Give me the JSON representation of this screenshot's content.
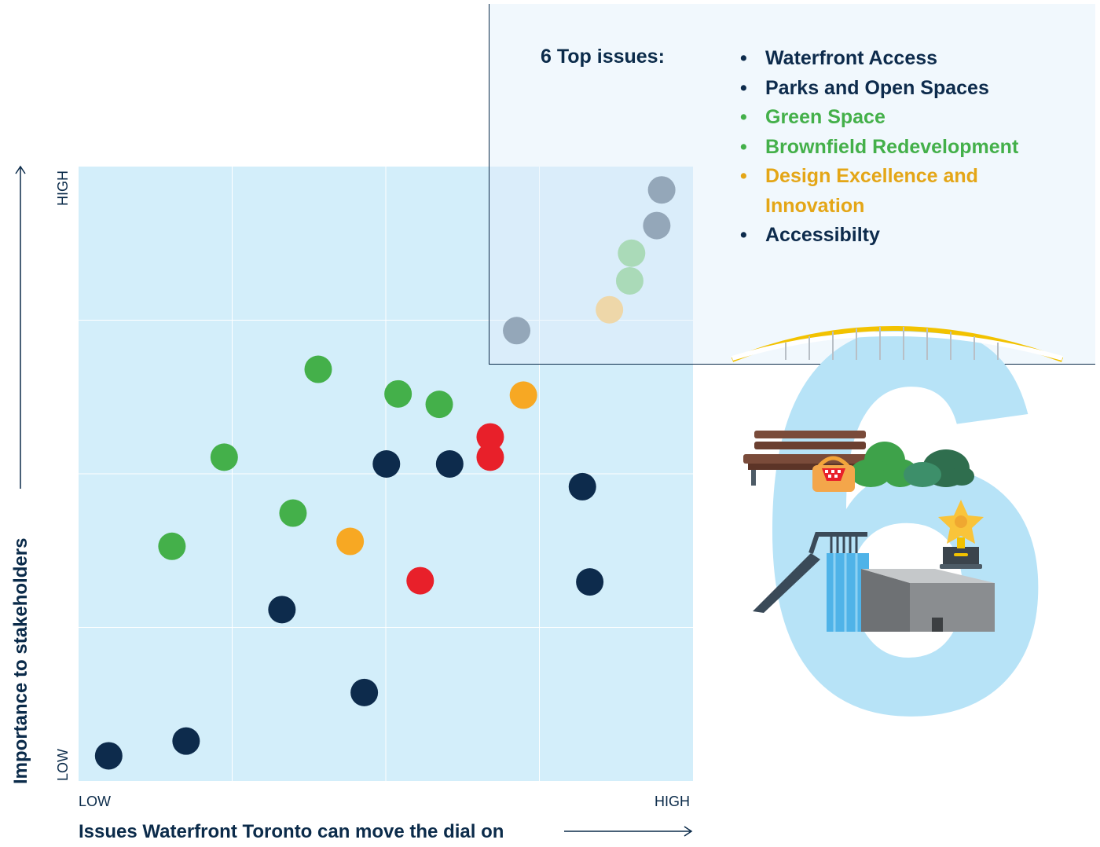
{
  "chart_data": {
    "type": "scatter",
    "title": "",
    "xlabel": "Issues Waterfront Toronto can move the dial on",
    "ylabel": "Importance to stakeholders",
    "x_ticks": [
      "LOW",
      "HIGH"
    ],
    "y_ticks": [
      "LOW",
      "HIGH"
    ],
    "xlim": [
      0,
      100
    ],
    "ylim": [
      0,
      100
    ],
    "grid": true,
    "colors": {
      "navy": "#0d2b4c",
      "green": "#44b04a",
      "orange": "#f7a823",
      "red": "#e8202a",
      "plot_bg": "#d3eefa",
      "highlight_bg": "#c3e3f6"
    },
    "points": [
      {
        "x": 94.9,
        "y": 96.2,
        "color": "navy"
      },
      {
        "x": 94.1,
        "y": 90.4,
        "color": "navy"
      },
      {
        "x": 90.0,
        "y": 85.9,
        "color": "green"
      },
      {
        "x": 89.7,
        "y": 81.4,
        "color": "green"
      },
      {
        "x": 86.4,
        "y": 76.7,
        "color": "orange"
      },
      {
        "x": 71.3,
        "y": 73.3,
        "color": "navy"
      },
      {
        "x": 39.0,
        "y": 67.0,
        "color": "green"
      },
      {
        "x": 52.0,
        "y": 63.0,
        "color": "green"
      },
      {
        "x": 58.7,
        "y": 61.3,
        "color": "green"
      },
      {
        "x": 72.4,
        "y": 62.8,
        "color": "orange"
      },
      {
        "x": 67.0,
        "y": 56.0,
        "color": "red"
      },
      {
        "x": 67.0,
        "y": 52.7,
        "color": "red"
      },
      {
        "x": 23.7,
        "y": 52.7,
        "color": "green"
      },
      {
        "x": 50.1,
        "y": 51.6,
        "color": "navy"
      },
      {
        "x": 60.4,
        "y": 51.6,
        "color": "navy"
      },
      {
        "x": 82.0,
        "y": 47.9,
        "color": "navy"
      },
      {
        "x": 34.9,
        "y": 43.6,
        "color": "green"
      },
      {
        "x": 15.2,
        "y": 38.2,
        "color": "green"
      },
      {
        "x": 44.2,
        "y": 39.0,
        "color": "orange"
      },
      {
        "x": 55.6,
        "y": 32.6,
        "color": "red"
      },
      {
        "x": 83.2,
        "y": 32.4,
        "color": "navy"
      },
      {
        "x": 33.1,
        "y": 27.9,
        "color": "navy"
      },
      {
        "x": 46.5,
        "y": 14.4,
        "color": "navy"
      },
      {
        "x": 17.5,
        "y": 6.5,
        "color": "navy"
      },
      {
        "x": 4.9,
        "y": 4.1,
        "color": "navy"
      }
    ]
  },
  "callout": {
    "heading": "6 Top issues:",
    "bullet": "•",
    "items": [
      {
        "label": "Waterfront Access",
        "color": "#0d2b4c"
      },
      {
        "label": "Parks and Open Spaces",
        "color": "#0d2b4c"
      },
      {
        "label": "Green Space",
        "color": "#44b04a"
      },
      {
        "label": "Brownfield Redevelopment",
        "color": "#44b04a"
      },
      {
        "label": "Design Excellence and Innovation",
        "color": "#e4a617"
      },
      {
        "label": "Accessibilty",
        "color": "#0d2b4c"
      }
    ]
  },
  "illustration": {
    "digit": "6",
    "icons": [
      "bridge-icon",
      "bench-icon",
      "picnic-basket-icon",
      "trees-icon",
      "trophy-star-icon",
      "building-icon"
    ]
  }
}
